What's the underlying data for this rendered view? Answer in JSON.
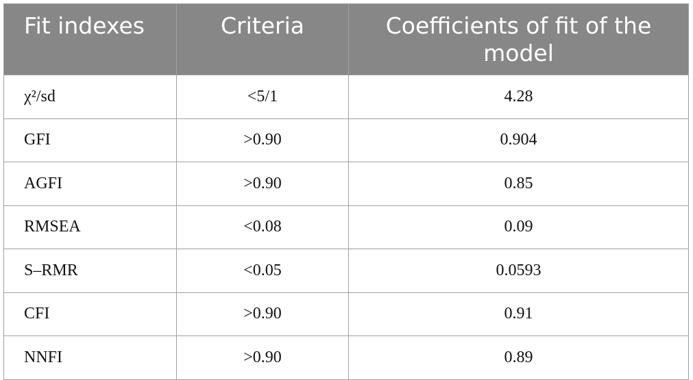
{
  "table": {
    "header": [
      "Fit indexes",
      "Criteria",
      "Coefficients of fit of the model"
    ],
    "rows": [
      [
        "χ²/sd",
        "<5/1",
        "4.28"
      ],
      [
        "GFI",
        ">0.90",
        "0.904"
      ],
      [
        "AGFI",
        ">0.90",
        "0.85"
      ],
      [
        "RMSEA",
        "<0.08",
        "0.09"
      ],
      [
        "S–RMR",
        "<0.05",
        "0.0593"
      ],
      [
        "CFI",
        ">0.90",
        "0.91"
      ],
      [
        "NNFI",
        ">0.90",
        "0.89"
      ]
    ]
  }
}
